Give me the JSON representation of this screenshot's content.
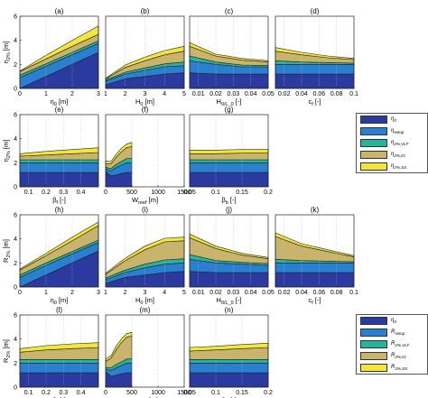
{
  "colors": {
    "eta0": "#2b3a9e",
    "setup": "#2a7fd0",
    "vlf": "#26b59a",
    "ig": "#c8b46a",
    "ss": "#f2e63a"
  },
  "legends": [
    {
      "items": [
        {
          "color_key": "eta0",
          "label": "η_0"
        },
        {
          "color_key": "setup",
          "label": "η_setup"
        },
        {
          "color_key": "vlf",
          "label": "η_2%,VLF"
        },
        {
          "color_key": "ig",
          "label": "η_2%,IG"
        },
        {
          "color_key": "ss",
          "label": "η_2%,SS"
        }
      ]
    },
    {
      "items": [
        {
          "color_key": "eta0",
          "label": "η_0"
        },
        {
          "color_key": "setup",
          "label": "R_setup"
        },
        {
          "color_key": "vlf",
          "label": "R_2%,VLF"
        },
        {
          "color_key": "ig",
          "label": "R_2%,IG"
        },
        {
          "color_key": "ss",
          "label": "R_2%,SS"
        }
      ]
    }
  ],
  "chart_data": [
    {
      "id": "a",
      "type": "area",
      "title": "(a)",
      "xlabel": "η_0 [m]",
      "ylabel": "η_2% [m]",
      "xlim": [
        0,
        3
      ],
      "ylim": [
        0,
        6
      ],
      "xticks": [
        "0",
        "1",
        "2",
        "3"
      ],
      "yticks": [
        "0",
        "2",
        "4",
        "6"
      ],
      "x": [
        0,
        1,
        2,
        3
      ],
      "series": [
        {
          "key": "eta0",
          "values": [
            0,
            1,
            2,
            3
          ]
        },
        {
          "key": "setup",
          "values": [
            0.9,
            0.85,
            0.8,
            0.75
          ]
        },
        {
          "key": "vlf",
          "values": [
            0.2,
            0.2,
            0.2,
            0.2
          ]
        },
        {
          "key": "ig",
          "values": [
            0.3,
            0.4,
            0.5,
            0.55
          ]
        },
        {
          "key": "ss",
          "values": [
            0.05,
            0.3,
            0.5,
            0.7
          ]
        }
      ]
    },
    {
      "id": "b",
      "type": "area",
      "title": "(b)",
      "xlabel": "H_0 [m]",
      "ylabel": "",
      "xlim": [
        1,
        5
      ],
      "ylim": [
        0,
        6
      ],
      "xticks": [
        "1",
        "2",
        "3",
        "4",
        "5"
      ],
      "yticks": [],
      "x": [
        1,
        2,
        3,
        4,
        5
      ],
      "series": [
        {
          "key": "eta0",
          "values": [
            0.3,
            0.8,
            1.0,
            1.2,
            1.3
          ]
        },
        {
          "key": "setup",
          "values": [
            0.3,
            0.4,
            0.5,
            0.6,
            0.6
          ]
        },
        {
          "key": "vlf",
          "values": [
            0.1,
            0.15,
            0.2,
            0.25,
            0.3
          ]
        },
        {
          "key": "ig",
          "values": [
            0.1,
            0.4,
            0.6,
            0.75,
            0.9
          ]
        },
        {
          "key": "ss",
          "values": [
            0.05,
            0.2,
            0.3,
            0.35,
            0.4
          ]
        }
      ]
    },
    {
      "id": "c",
      "type": "area",
      "title": "(c)",
      "xlabel": "H_0/L_0 [-]",
      "ylabel": "",
      "xlim": [
        0.005,
        0.05
      ],
      "ylim": [
        0,
        6
      ],
      "xticks": [
        "0.01",
        "0.02",
        "0.03",
        "0.04",
        "0.05"
      ],
      "xtick_values": [
        0.01,
        0.02,
        0.03,
        0.04,
        0.05
      ],
      "yticks": [],
      "x": [
        0.005,
        0.02,
        0.035,
        0.05
      ],
      "series": [
        {
          "key": "eta0",
          "values": [
            1.3,
            1.2,
            1.2,
            1.2
          ]
        },
        {
          "key": "setup",
          "values": [
            1.0,
            0.8,
            0.6,
            0.6
          ]
        },
        {
          "key": "vlf",
          "values": [
            0.4,
            0.2,
            0.15,
            0.1
          ]
        },
        {
          "key": "ig",
          "values": [
            0.8,
            0.5,
            0.4,
            0.3
          ]
        },
        {
          "key": "ss",
          "values": [
            0.3,
            0.15,
            0.15,
            0.1
          ]
        }
      ]
    },
    {
      "id": "d",
      "type": "area",
      "title": "(d)",
      "xlabel": "c_f [-]",
      "ylabel": "",
      "xlim": [
        0.01,
        0.1
      ],
      "ylim": [
        0,
        6
      ],
      "xticks": [
        "0.02",
        "0.04",
        "0.06",
        "0.08",
        "0.1"
      ],
      "xtick_values": [
        0.02,
        0.04,
        0.06,
        0.08,
        0.1
      ],
      "yticks": [],
      "x": [
        0.01,
        0.04,
        0.07,
        0.1
      ],
      "series": [
        {
          "key": "eta0",
          "values": [
            1.2,
            1.2,
            1.2,
            1.2
          ]
        },
        {
          "key": "setup",
          "values": [
            0.8,
            0.8,
            0.8,
            0.8
          ]
        },
        {
          "key": "vlf",
          "values": [
            0.3,
            0.2,
            0.15,
            0.1
          ]
        },
        {
          "key": "ig",
          "values": [
            0.8,
            0.6,
            0.4,
            0.3
          ]
        },
        {
          "key": "ss",
          "values": [
            0.3,
            0.2,
            0.15,
            0.1
          ]
        }
      ]
    },
    {
      "id": "e",
      "type": "area",
      "title": "(e)",
      "xlabel": "β_f [-]",
      "ylabel": "η_2% [m]",
      "xlim": [
        0.05,
        0.5
      ],
      "ylim": [
        0,
        6
      ],
      "xticks": [
        "0.1",
        "0.2",
        "0.3",
        "0.4"
      ],
      "xtick_values": [
        0.1,
        0.2,
        0.3,
        0.4
      ],
      "yticks": [
        "0",
        "2",
        "4",
        "6"
      ],
      "x": [
        0.05,
        0.2,
        0.35,
        0.5
      ],
      "series": [
        {
          "key": "eta0",
          "values": [
            1.2,
            1.2,
            1.2,
            1.2
          ]
        },
        {
          "key": "setup",
          "values": [
            0.8,
            0.8,
            0.8,
            0.8
          ]
        },
        {
          "key": "vlf",
          "values": [
            0.25,
            0.25,
            0.25,
            0.25
          ]
        },
        {
          "key": "ig",
          "values": [
            0.3,
            0.4,
            0.5,
            0.6
          ]
        },
        {
          "key": "ss",
          "values": [
            0.2,
            0.3,
            0.35,
            0.4
          ]
        }
      ]
    },
    {
      "id": "f",
      "type": "area",
      "title": "(f)",
      "xlabel": "W_reef [m]",
      "ylabel": "",
      "xlim": [
        0,
        1500
      ],
      "ylim": [
        0,
        6
      ],
      "xticks": [
        "0",
        "500",
        "1000",
        "1500"
      ],
      "yticks": [],
      "x": [
        0,
        100,
        200,
        300,
        400,
        500
      ],
      "series": [
        {
          "key": "eta0",
          "values": [
            1.3,
            0.9,
            1.0,
            1.1,
            1.2,
            1.2
          ]
        },
        {
          "key": "setup",
          "values": [
            0.2,
            0.4,
            0.6,
            0.7,
            0.8,
            0.8
          ]
        },
        {
          "key": "vlf",
          "values": [
            0.15,
            0.2,
            0.25,
            0.3,
            0.35,
            0.35
          ]
        },
        {
          "key": "ig",
          "values": [
            0.3,
            0.4,
            0.6,
            0.8,
            0.9,
            1.0
          ]
        },
        {
          "key": "ss",
          "values": [
            0.2,
            0.2,
            0.25,
            0.3,
            0.3,
            0.35
          ]
        }
      ]
    },
    {
      "id": "g",
      "type": "area",
      "title": "(g)",
      "xlabel": "β_b [-]",
      "ylabel": "",
      "xlim": [
        0.05,
        0.2
      ],
      "ylim": [
        0,
        6
      ],
      "xticks": [
        "0.05",
        "0.1",
        "0.15",
        "0.2"
      ],
      "xtick_values": [
        0.05,
        0.1,
        0.15,
        0.2
      ],
      "yticks": [],
      "x": [
        0.05,
        0.1,
        0.15,
        0.2
      ],
      "series": [
        {
          "key": "eta0",
          "values": [
            1.2,
            1.2,
            1.2,
            1.2
          ]
        },
        {
          "key": "setup",
          "values": [
            0.8,
            0.8,
            0.8,
            0.8
          ]
        },
        {
          "key": "vlf",
          "values": [
            0.25,
            0.25,
            0.25,
            0.25
          ]
        },
        {
          "key": "ig",
          "values": [
            0.5,
            0.5,
            0.55,
            0.55
          ]
        },
        {
          "key": "ss",
          "values": [
            0.3,
            0.3,
            0.3,
            0.3
          ]
        }
      ]
    },
    {
      "id": "h",
      "type": "area",
      "title": "(h)",
      "xlabel": "η_0 [m]",
      "ylabel": "R_2% [m]",
      "xlim": [
        0,
        3
      ],
      "ylim": [
        0,
        6
      ],
      "xticks": [
        "0",
        "1",
        "2",
        "3"
      ],
      "yticks": [
        "0",
        "2",
        "4",
        "6"
      ],
      "x": [
        0,
        1,
        2,
        3
      ],
      "series": [
        {
          "key": "eta0",
          "values": [
            0,
            1,
            2,
            3
          ]
        },
        {
          "key": "setup",
          "values": [
            0.8,
            0.8,
            0.75,
            0.7
          ]
        },
        {
          "key": "vlf",
          "values": [
            0.2,
            0.2,
            0.2,
            0.2
          ]
        },
        {
          "key": "ig",
          "values": [
            0.4,
            0.6,
            0.9,
            1.2
          ]
        },
        {
          "key": "ss",
          "values": [
            0.1,
            0.2,
            0.3,
            0.3
          ]
        }
      ]
    },
    {
      "id": "i",
      "type": "area",
      "title": "(i)",
      "xlabel": "H_0 [m]",
      "ylabel": "",
      "xlim": [
        1,
        5
      ],
      "ylim": [
        0,
        6
      ],
      "xticks": [
        "1",
        "2",
        "3",
        "4",
        "5"
      ],
      "yticks": [],
      "x": [
        1,
        2,
        3,
        4,
        5
      ],
      "series": [
        {
          "key": "eta0",
          "values": [
            0.3,
            0.8,
            1.0,
            1.2,
            1.3
          ]
        },
        {
          "key": "setup",
          "values": [
            0.3,
            0.4,
            0.6,
            0.7,
            0.7
          ]
        },
        {
          "key": "vlf",
          "values": [
            0.15,
            0.2,
            0.3,
            0.35,
            0.35
          ]
        },
        {
          "key": "ig",
          "values": [
            0.3,
            0.8,
            1.2,
            1.5,
            1.5
          ]
        },
        {
          "key": "ss",
          "values": [
            0.1,
            0.2,
            0.3,
            0.3,
            0.3
          ]
        }
      ]
    },
    {
      "id": "j",
      "type": "area",
      "title": "(j)",
      "xlabel": "H_0/L_0 [-]",
      "ylabel": "",
      "xlim": [
        0.005,
        0.05
      ],
      "ylim": [
        0,
        6
      ],
      "xticks": [
        "0.01",
        "0.02",
        "0.03",
        "0.04",
        "0.05"
      ],
      "xtick_values": [
        0.01,
        0.02,
        0.03,
        0.04,
        0.05
      ],
      "yticks": [],
      "x": [
        0.005,
        0.02,
        0.035,
        0.05
      ],
      "series": [
        {
          "key": "eta0",
          "values": [
            1.3,
            1.2,
            1.2,
            1.2
          ]
        },
        {
          "key": "setup",
          "values": [
            1.0,
            0.8,
            0.7,
            0.6
          ]
        },
        {
          "key": "vlf",
          "values": [
            0.4,
            0.2,
            0.15,
            0.15
          ]
        },
        {
          "key": "ig",
          "values": [
            1.4,
            1.0,
            0.6,
            0.4
          ]
        },
        {
          "key": "ss",
          "values": [
            0.3,
            0.2,
            0.15,
            0.1
          ]
        }
      ]
    },
    {
      "id": "k",
      "type": "area",
      "title": "(k)",
      "xlabel": "c_f [-]",
      "ylabel": "",
      "xlim": [
        0.01,
        0.1
      ],
      "ylim": [
        0,
        6
      ],
      "xticks": [
        "0.02",
        "0.04",
        "0.06",
        "0.08",
        "0.1"
      ],
      "xtick_values": [
        0.02,
        0.04,
        0.06,
        0.08,
        0.1
      ],
      "yticks": [],
      "x": [
        0.01,
        0.04,
        0.07,
        0.1
      ],
      "series": [
        {
          "key": "eta0",
          "values": [
            1.2,
            1.2,
            1.2,
            1.2
          ]
        },
        {
          "key": "setup",
          "values": [
            0.8,
            0.8,
            0.8,
            0.8
          ]
        },
        {
          "key": "vlf",
          "values": [
            0.3,
            0.2,
            0.15,
            0.1
          ]
        },
        {
          "key": "ig",
          "values": [
            1.9,
            1.2,
            0.8,
            0.4
          ]
        },
        {
          "key": "ss",
          "values": [
            0.3,
            0.2,
            0.15,
            0.1
          ]
        }
      ]
    },
    {
      "id": "l",
      "type": "area",
      "title": "(l)",
      "xlabel": "β_f [-]",
      "ylabel": "R_2% [m]",
      "xlim": [
        0.05,
        0.5
      ],
      "ylim": [
        0,
        6
      ],
      "xticks": [
        "0.1",
        "0.2",
        "0.3",
        "0.4"
      ],
      "xtick_values": [
        0.1,
        0.2,
        0.3,
        0.4
      ],
      "yticks": [
        "0",
        "2",
        "4",
        "6"
      ],
      "x": [
        0.05,
        0.2,
        0.35,
        0.5
      ],
      "series": [
        {
          "key": "eta0",
          "values": [
            1.2,
            1.2,
            1.2,
            1.2
          ]
        },
        {
          "key": "setup",
          "values": [
            0.8,
            0.8,
            0.8,
            0.8
          ]
        },
        {
          "key": "vlf",
          "values": [
            0.3,
            0.3,
            0.3,
            0.3
          ]
        },
        {
          "key": "ig",
          "values": [
            0.6,
            0.8,
            0.9,
            1.0
          ]
        },
        {
          "key": "ss",
          "values": [
            0.3,
            0.35,
            0.4,
            0.4
          ]
        }
      ]
    },
    {
      "id": "m",
      "type": "area",
      "title": "(m)",
      "xlabel": "W_reef [m]",
      "ylabel": "",
      "xlim": [
        0,
        1500
      ],
      "ylim": [
        0,
        6
      ],
      "xticks": [
        "0",
        "500",
        "1000",
        "1500"
      ],
      "yticks": [],
      "x": [
        0,
        100,
        200,
        300,
        400,
        500
      ],
      "series": [
        {
          "key": "eta0",
          "values": [
            1.3,
            0.9,
            1.0,
            1.1,
            1.2,
            1.2
          ]
        },
        {
          "key": "setup",
          "values": [
            0.2,
            0.5,
            0.6,
            0.7,
            0.8,
            0.8
          ]
        },
        {
          "key": "vlf",
          "values": [
            0.15,
            0.2,
            0.3,
            0.3,
            0.35,
            0.35
          ]
        },
        {
          "key": "ig",
          "values": [
            0.5,
            0.8,
            1.2,
            1.6,
            1.8,
            1.9
          ]
        },
        {
          "key": "ss",
          "values": [
            0.2,
            0.2,
            0.3,
            0.3,
            0.3,
            0.3
          ]
        }
      ]
    },
    {
      "id": "n",
      "type": "area",
      "title": "(n)",
      "xlabel": "β_b [-]",
      "ylabel": "",
      "xlim": [
        0.05,
        0.2
      ],
      "ylim": [
        0,
        6
      ],
      "xticks": [
        "0.05",
        "0.1",
        "0.15",
        "0.2"
      ],
      "xtick_values": [
        0.05,
        0.1,
        0.15,
        0.2
      ],
      "yticks": [],
      "x": [
        0.05,
        0.1,
        0.15,
        0.2
      ],
      "series": [
        {
          "key": "eta0",
          "values": [
            1.2,
            1.2,
            1.2,
            1.2
          ]
        },
        {
          "key": "setup",
          "values": [
            0.8,
            0.8,
            0.8,
            0.8
          ]
        },
        {
          "key": "vlf",
          "values": [
            0.3,
            0.3,
            0.3,
            0.3
          ]
        },
        {
          "key": "ig",
          "values": [
            0.7,
            0.8,
            0.9,
            1.0
          ]
        },
        {
          "key": "ss",
          "values": [
            0.3,
            0.3,
            0.35,
            0.35
          ]
        }
      ]
    }
  ]
}
